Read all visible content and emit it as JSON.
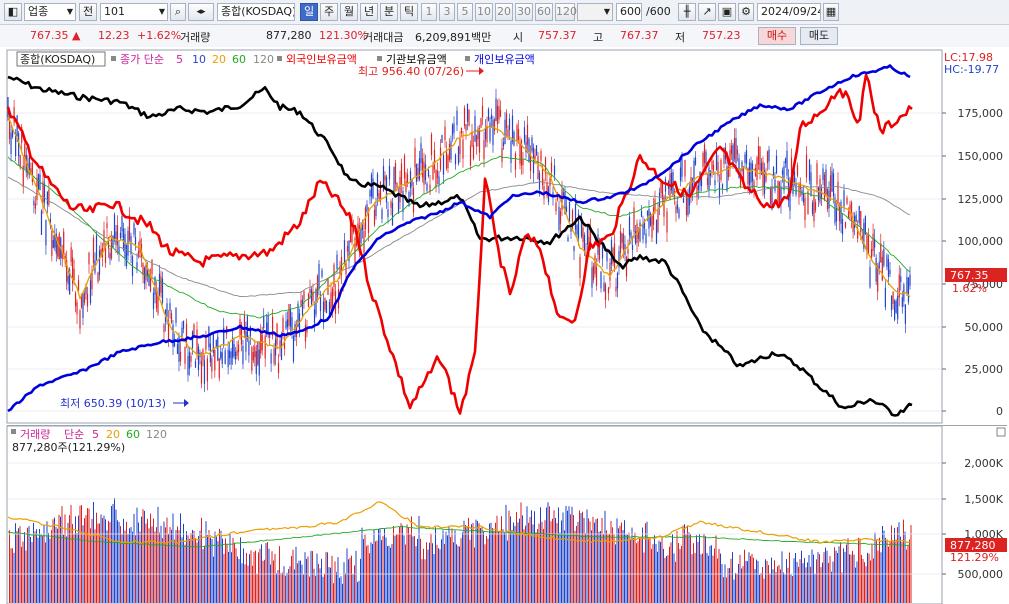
{
  "toolbar": {
    "market": "업종",
    "scope": "전",
    "code": "101",
    "index_name": "종합(KOSDAQ)",
    "periods": [
      "일",
      "주",
      "월",
      "년",
      "분",
      "틱"
    ],
    "active_period": "일",
    "intervals": [
      "1",
      "3",
      "5",
      "10",
      "20",
      "30",
      "60",
      "120"
    ],
    "count": "600",
    "count_total": "/600",
    "date": "2024/09/24"
  },
  "quote": {
    "price": "767.35",
    "arrow": "▲",
    "change": "12.23",
    "change_pct": "+1.62%",
    "volume_label": "거래량",
    "volume": "877,280",
    "volume_ratio": "121.30%",
    "amount_label": "거래대금",
    "amount": "6,209,891백만",
    "open_label": "시",
    "open": "757.37",
    "high_label": "고",
    "high": "767.37",
    "low_label": "저",
    "low": "757.23",
    "buy_label": "매수",
    "sell_label": "매도"
  },
  "price_panel": {
    "title": "종합(KOSDAQ)",
    "ma_label": "종가 단순",
    "ma_periods": [
      "5",
      "10",
      "20",
      "60",
      "120"
    ],
    "ma_colors": [
      "#cc2299",
      "#3344cc",
      "#e8a000",
      "#22aa22",
      "#888888"
    ],
    "foreign_label": "외국인보유금액",
    "inst_label": "기관보유금액",
    "indiv_label": "개인보유금액",
    "lc": "LC:17.98",
    "hc": "HC:-19.77",
    "high_marker": "최고 956.40 (07/26)",
    "low_marker": "최저 650.39 (10/13)",
    "last_value": "767.35",
    "last_pct": "1.62%",
    "y_ticks": [
      "175,000",
      "150,000",
      "125,000",
      "100,000",
      "75,000",
      "50,000",
      "25,000",
      "0"
    ]
  },
  "volume_panel": {
    "title": "거래량",
    "ma_label": "단순",
    "ma_periods": [
      "5",
      "20",
      "60",
      "120"
    ],
    "ma_colors": [
      "#cc2299",
      "#e8a000",
      "#22aa22",
      "#888888"
    ],
    "current": "877,280주(121.29%)",
    "last_value": "877,280",
    "last_pct": "121.29%",
    "y_ticks": [
      "2,000K",
      "1,500K",
      "1,000K",
      "500,000"
    ]
  },
  "colors": {
    "foreign": "#ee0000",
    "institution": "#000000",
    "individual": "#0000dd",
    "up_candle": "#dd2222",
    "down_candle": "#2244cc",
    "accent": "#3d6bc7"
  }
}
